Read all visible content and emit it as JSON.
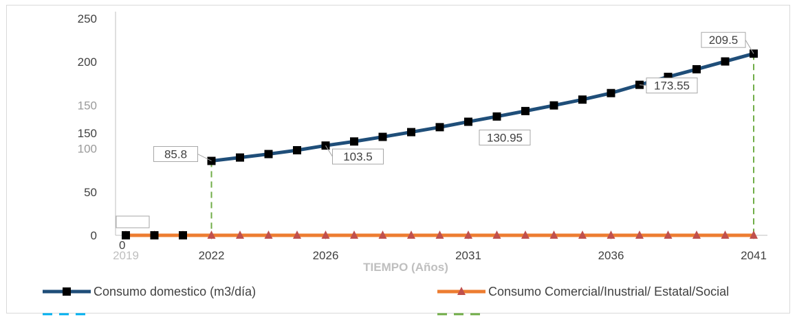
{
  "chart_data": {
    "type": "line",
    "xlabel": "TIEMPO (Años)",
    "ylim": [
      0,
      250
    ],
    "y_ticks": [
      {
        "value": 250,
        "label": "250",
        "faint": false
      },
      {
        "value": 200,
        "label": "200",
        "faint": false
      },
      {
        "value": 150,
        "label": "150",
        "faint": true
      },
      {
        "value": 100,
        "label": "100",
        "faint": true
      },
      {
        "value": 50,
        "label": "50",
        "faint": false
      },
      {
        "value": 0,
        "label": "0",
        "faint": false
      }
    ],
    "y_extra_label": {
      "value": 118,
      "label": "150"
    },
    "x_min": 2019,
    "x_max": 2041,
    "x_ticks": [
      {
        "value": 2019,
        "label": "2019",
        "faint": true
      },
      {
        "value": 2022,
        "label": "2022",
        "faint": false
      },
      {
        "value": 2026,
        "label": "2026",
        "faint": false
      },
      {
        "value": 2031,
        "label": "2031",
        "faint": false
      },
      {
        "value": 2036,
        "label": "2036",
        "faint": false
      },
      {
        "value": 2041,
        "label": "2041",
        "faint": false
      }
    ],
    "series": [
      {
        "name": "Consumo  domestico (m3/día)",
        "color": "#1f4e79",
        "marker": "square",
        "points": [
          [
            2019,
            0
          ],
          [
            2020,
            0
          ],
          [
            2021,
            0
          ],
          [
            2022,
            85.8
          ],
          [
            2023,
            89.7
          ],
          [
            2024,
            93.7
          ],
          [
            2025,
            98.1
          ],
          [
            2026,
            103.5
          ],
          [
            2027,
            108.2
          ],
          [
            2028,
            113.5
          ],
          [
            2029,
            119.0
          ],
          [
            2030,
            124.7
          ],
          [
            2031,
            130.95
          ],
          [
            2032,
            137.0
          ],
          [
            2033,
            143.3
          ],
          [
            2034,
            149.8
          ],
          [
            2035,
            156.5
          ],
          [
            2036,
            164.0
          ],
          [
            2037,
            173.55
          ],
          [
            2038,
            182.7
          ],
          [
            2039,
            191.5
          ],
          [
            2040,
            200.5
          ],
          [
            2041,
            209.5
          ]
        ]
      },
      {
        "name": "Consumo Comercial/Inustrial/ Estatal/Social",
        "color": "#ed7d31",
        "marker_color": "#c0504d",
        "marker": "triangle",
        "points": [
          [
            2019,
            0
          ],
          [
            2020,
            0
          ],
          [
            2021,
            0
          ],
          [
            2022,
            0
          ],
          [
            2023,
            0
          ],
          [
            2024,
            0
          ],
          [
            2025,
            0
          ],
          [
            2026,
            0
          ],
          [
            2027,
            0
          ],
          [
            2028,
            0
          ],
          [
            2029,
            0
          ],
          [
            2030,
            0
          ],
          [
            2031,
            0
          ],
          [
            2032,
            0
          ],
          [
            2033,
            0
          ],
          [
            2034,
            0
          ],
          [
            2035,
            0
          ],
          [
            2036,
            0
          ],
          [
            2037,
            0
          ],
          [
            2038,
            0
          ],
          [
            2039,
            0
          ],
          [
            2040,
            0
          ],
          [
            2041,
            0
          ]
        ]
      }
    ],
    "reference_lines": [
      {
        "x": 2022,
        "color": "#70ad47"
      },
      {
        "x": 2041,
        "color": "#70ad47"
      }
    ],
    "data_labels": [
      {
        "x": 2019,
        "y": 0,
        "label": "0"
      },
      {
        "x": 2022,
        "y": 85.8,
        "label": "85.8"
      },
      {
        "x": 2026,
        "y": 103.5,
        "label": "103.5"
      },
      {
        "x": 2031,
        "y": 130.95,
        "label": "130.95"
      },
      {
        "x": 2037,
        "y": 173.55,
        "label": "173.55"
      },
      {
        "x": 2041,
        "y": 209.5,
        "label": "209.5"
      }
    ],
    "legend": {
      "position": "bottom",
      "entries": [
        {
          "label": "Consumo  domestico (m3/día)",
          "color": "#1f4e79",
          "marker": "square"
        },
        {
          "label": "Consumo Comercial/Inustrial/ Estatal/Social",
          "color": "#ed7d31",
          "marker": "triangle"
        },
        {
          "label": "",
          "color": "#00b0f0",
          "marker": "dash"
        },
        {
          "label": "",
          "color": "#70ad47",
          "marker": "dash"
        }
      ]
    }
  }
}
